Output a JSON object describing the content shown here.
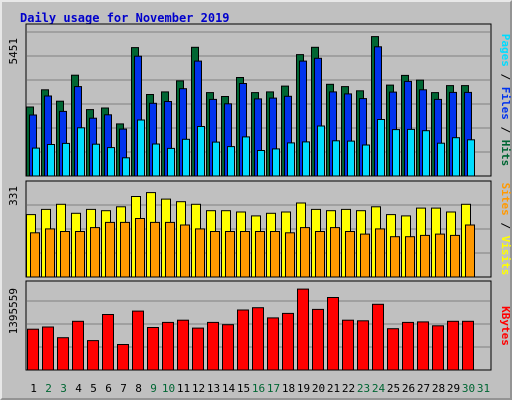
{
  "title": "Daily usage for November 2019",
  "colors": {
    "hits": "#006633",
    "files": "#0033ee",
    "pages": "#00ddff",
    "visits": "#ffff00",
    "sites": "#ff9900",
    "kbytes": "#ff0000",
    "weekend_label": "#006633",
    "weekday_label": "#000000",
    "separator": "#000000"
  },
  "legend": {
    "panel1": [
      {
        "text": "Pages",
        "color": "#00ddff"
      },
      {
        "text": " / ",
        "color": "#000000"
      },
      {
        "text": "Files",
        "color": "#0033ee"
      },
      {
        "text": " / ",
        "color": "#000000"
      },
      {
        "text": "Hits",
        "color": "#006633"
      }
    ],
    "panel2": [
      {
        "text": "Sites",
        "color": "#ff9900"
      },
      {
        "text": " / ",
        "color": "#000000"
      },
      {
        "text": "Visits",
        "color": "#ffff00"
      }
    ],
    "panel3": [
      {
        "text": "KBytes",
        "color": "#ff0000"
      }
    ]
  },
  "chart_data": {
    "type": "bar",
    "title": "Daily usage for November 2019",
    "categories": [
      "1",
      "2",
      "3",
      "4",
      "5",
      "6",
      "7",
      "8",
      "9",
      "10",
      "11",
      "12",
      "13",
      "14",
      "15",
      "16",
      "17",
      "18",
      "19",
      "20",
      "21",
      "22",
      "23",
      "24",
      "25",
      "26",
      "27",
      "28",
      "29",
      "30",
      "31"
    ],
    "weekend_days": [
      "2",
      "3",
      "9",
      "10",
      "16",
      "17",
      "23",
      "24",
      "30",
      "31"
    ],
    "panels": [
      {
        "name": "hits-files-pages",
        "max_label": "5451",
        "ymax": 5451,
        "series": [
          {
            "name": "Hits",
            "values": [
              2650,
              3310,
              2870,
              3870,
              2550,
              2610,
              2000,
              4930,
              3130,
              3230,
              3650,
              4940,
              3200,
              3050,
              3780,
              3200,
              3230,
              3450,
              4660,
              4940,
              3520,
              3430,
              3270,
              5350,
              3490,
              3860,
              3680,
              3200,
              3470,
              3470,
              0
            ]
          },
          {
            "name": "Files",
            "values": [
              2340,
              3070,
              2480,
              3430,
              2220,
              2350,
              1800,
              4600,
              2790,
              2860,
              3350,
              4410,
              2940,
              2770,
              3550,
              2960,
              2990,
              3060,
              4410,
              4520,
              3230,
              3150,
              2970,
              4960,
              3220,
              3630,
              3310,
              2940,
              3210,
              3210,
              0
            ]
          },
          {
            "name": "Pages",
            "values": [
              1070,
              1210,
              1250,
              1850,
              1220,
              1090,
              700,
              2150,
              1230,
              1060,
              1410,
              1900,
              1300,
              1130,
              1500,
              980,
              1040,
              1270,
              1310,
              1920,
              1350,
              1340,
              1190,
              2170,
              1780,
              1790,
              1740,
              1260,
              1470,
              1390,
              0
            ]
          }
        ]
      },
      {
        "name": "visits-sites",
        "max_label": "331",
        "ymax": 331,
        "series": [
          {
            "name": "Visits",
            "values": [
              240,
              260,
              280,
              245,
              260,
              255,
              270,
              310,
              325,
              300,
              290,
              280,
              255,
              255,
              250,
              235,
              245,
              250,
              285,
              260,
              255,
              260,
              255,
              270,
              240,
              235,
              265,
              265,
              250,
              280,
              0
            ]
          },
          {
            "name": "Sites",
            "values": [
              170,
              185,
              175,
              175,
              190,
              210,
              210,
              225,
              210,
              210,
              200,
              185,
              175,
              175,
              175,
              175,
              175,
              170,
              190,
              175,
              190,
              175,
              165,
              185,
              155,
              155,
              160,
              165,
              160,
              200,
              0
            ]
          }
        ]
      },
      {
        "name": "kbytes",
        "max_label": "1395559",
        "ymax": 1395559,
        "series": [
          {
            "name": "KBytes",
            "values": [
              720000,
              760000,
              570000,
              860000,
              520000,
              980000,
              450000,
              1040000,
              750000,
              840000,
              880000,
              740000,
              840000,
              800000,
              1060000,
              1100000,
              920000,
              1000000,
              1430000,
              1070000,
              1280000,
              880000,
              870000,
              1160000,
              730000,
              840000,
              850000,
              780000,
              860000,
              860000,
              0
            ]
          }
        ]
      }
    ]
  }
}
